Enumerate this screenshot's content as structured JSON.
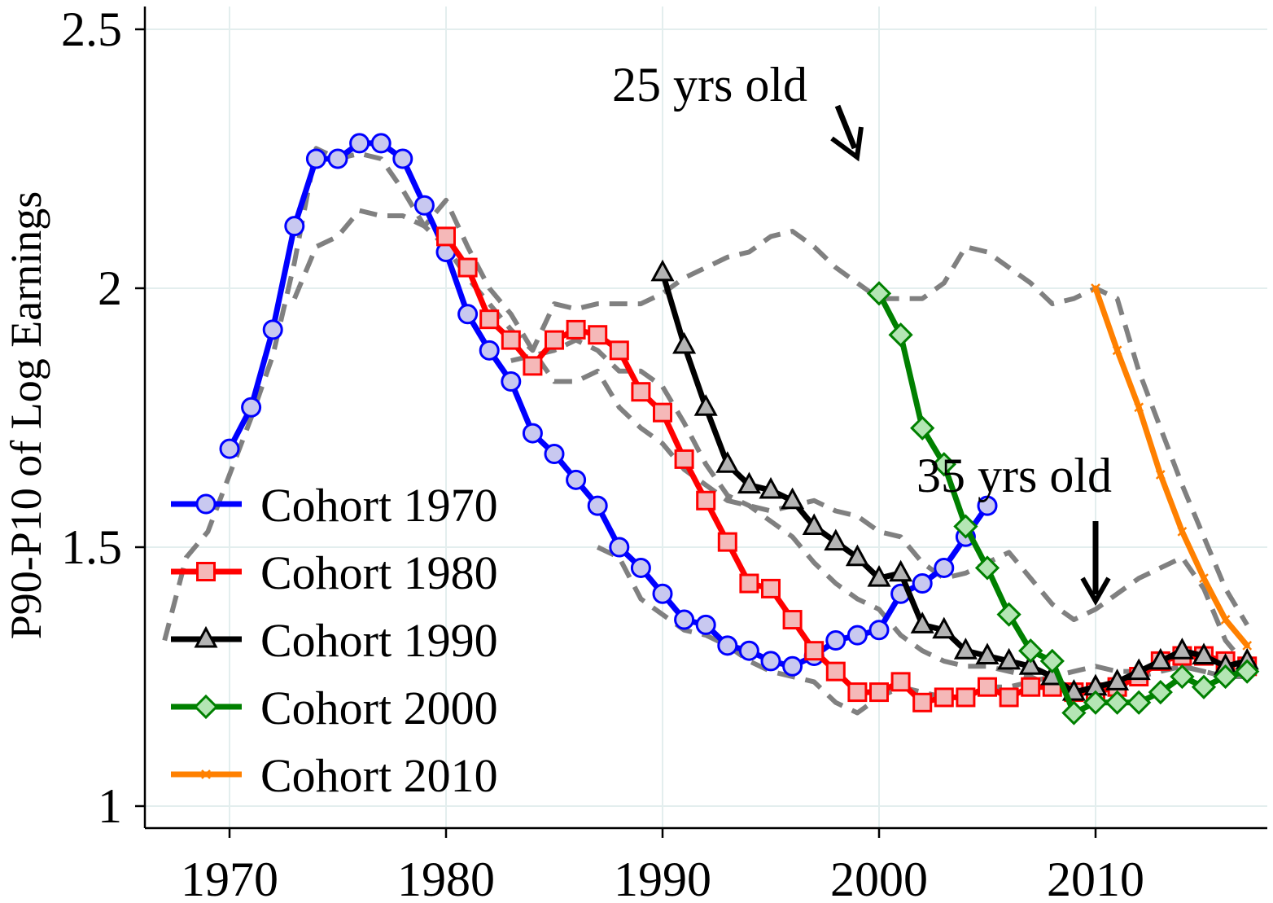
{
  "chart_data": {
    "type": "line",
    "title": "",
    "xlabel": "",
    "ylabel": "P90-P10 of Log Earnings",
    "xlim": [
      1966,
      2018
    ],
    "ylim": [
      1,
      2.55
    ],
    "x_ticks": [
      "1970",
      "1980",
      "1990",
      "2000",
      "2010"
    ],
    "y_ticks": [
      "1",
      "1.5",
      "2",
      "2.5"
    ],
    "grid": true,
    "legend_position": "bottom-left",
    "annotations": [
      {
        "text": "25 yrs old",
        "points_to": [
          1999,
          2.25
        ]
      },
      {
        "text": "35 yrs old",
        "points_to": [
          2010,
          1.39
        ]
      }
    ],
    "series": [
      {
        "name": "Cohort 1970",
        "color": "#0000ff",
        "marker": "circle",
        "marker_fill": "#c8c8f0",
        "x": [
          1970,
          1971,
          1972,
          1973,
          1974,
          1975,
          1976,
          1977,
          1978,
          1979,
          1980,
          1981,
          1982,
          1983,
          1984,
          1985,
          1986,
          1987,
          1988,
          1989,
          1990,
          1991,
          1992,
          1993,
          1994,
          1995,
          1996,
          1997,
          1998,
          1999,
          2000,
          2001,
          2002,
          2003,
          2004,
          2005
        ],
        "values": [
          1.69,
          1.77,
          1.92,
          2.12,
          2.25,
          2.25,
          2.28,
          2.28,
          2.25,
          2.16,
          2.07,
          1.95,
          1.88,
          1.82,
          1.72,
          1.68,
          1.63,
          1.58,
          1.5,
          1.46,
          1.41,
          1.36,
          1.35,
          1.31,
          1.3,
          1.28,
          1.27,
          1.29,
          1.32,
          1.33,
          1.34,
          1.41,
          1.43,
          1.46,
          1.52,
          1.58
        ]
      },
      {
        "name": "Cohort 1980",
        "color": "#ff0000",
        "marker": "square",
        "marker_fill": "#f5b8b8",
        "x": [
          1980,
          1981,
          1982,
          1983,
          1984,
          1985,
          1986,
          1987,
          1988,
          1989,
          1990,
          1991,
          1992,
          1993,
          1994,
          1995,
          1996,
          1997,
          1998,
          1999,
          2000,
          2001,
          2002,
          2003,
          2004,
          2005,
          2006,
          2007,
          2008,
          2009,
          2010,
          2011,
          2012,
          2013,
          2014,
          2015,
          2016,
          2017
        ],
        "values": [
          2.1,
          2.04,
          1.94,
          1.9,
          1.85,
          1.9,
          1.92,
          1.91,
          1.88,
          1.8,
          1.76,
          1.67,
          1.59,
          1.51,
          1.43,
          1.42,
          1.36,
          1.3,
          1.26,
          1.22,
          1.22,
          1.24,
          1.2,
          1.21,
          1.21,
          1.23,
          1.21,
          1.23,
          1.23,
          1.22,
          1.22,
          1.23,
          1.25,
          1.28,
          1.29,
          1.29,
          1.28,
          1.27
        ]
      },
      {
        "name": "Cohort 1990",
        "color": "#000000",
        "marker": "triangle",
        "marker_fill": "#b4b4b4",
        "x": [
          1990,
          1991,
          1992,
          1993,
          1994,
          1995,
          1996,
          1997,
          1998,
          1999,
          2000,
          2001,
          2002,
          2003,
          2004,
          2005,
          2006,
          2007,
          2008,
          2009,
          2010,
          2011,
          2012,
          2013,
          2014,
          2015,
          2016,
          2017
        ],
        "values": [
          2.03,
          1.89,
          1.77,
          1.66,
          1.62,
          1.61,
          1.59,
          1.54,
          1.51,
          1.48,
          1.44,
          1.45,
          1.35,
          1.34,
          1.3,
          1.29,
          1.28,
          1.27,
          1.25,
          1.22,
          1.23,
          1.24,
          1.26,
          1.28,
          1.3,
          1.29,
          1.27,
          1.28
        ]
      },
      {
        "name": "Cohort 2000",
        "color": "#008000",
        "marker": "diamond",
        "marker_fill": "#b4e6b4",
        "x": [
          2000,
          2001,
          2002,
          2003,
          2004,
          2005,
          2006,
          2007,
          2008,
          2009,
          2010,
          2011,
          2012,
          2013,
          2014,
          2015,
          2016,
          2017
        ],
        "values": [
          1.99,
          1.91,
          1.73,
          1.66,
          1.54,
          1.46,
          1.37,
          1.3,
          1.28,
          1.18,
          1.2,
          1.2,
          1.2,
          1.22,
          1.25,
          1.23,
          1.25,
          1.26
        ]
      },
      {
        "name": "Cohort 2010",
        "color": "#ff8000",
        "marker": "x",
        "marker_fill": "#ff8000",
        "x": [
          2010,
          2011,
          2012,
          2013,
          2014,
          2015,
          2016,
          2017
        ],
        "values": [
          2.0,
          1.88,
          1.77,
          1.64,
          1.53,
          1.44,
          1.36,
          1.31
        ]
      },
      {
        "name": "",
        "color": "#808080",
        "dashed": true,
        "x": [
          1967,
          1968,
          1969,
          1970,
          1971,
          1972,
          1973,
          1974,
          1975,
          1976,
          1977,
          1978,
          1979,
          1980,
          1981,
          1982,
          1983,
          1984,
          1985,
          1986,
          1987,
          1988,
          1989,
          1990,
          1991,
          1992,
          1993,
          1994,
          1995,
          1996,
          1997,
          1998,
          1999,
          2000,
          2001,
          2002,
          2003,
          2004,
          2005,
          2006,
          2007,
          2008,
          2009,
          2010,
          2011,
          2012,
          2013,
          2014,
          2015,
          2016,
          2017
        ],
        "values": [
          1.32,
          1.48,
          1.53,
          1.64,
          1.75,
          1.87,
          2.05,
          2.27,
          2.25,
          2.26,
          2.25,
          2.19,
          2.12,
          2.08,
          2.02,
          1.97,
          1.92,
          1.88,
          1.97,
          1.96,
          1.97,
          1.97,
          1.97,
          1.99,
          2.02,
          2.04,
          2.06,
          2.07,
          2.1,
          2.11,
          2.08,
          2.04,
          2.01,
          1.98,
          1.98,
          1.98,
          2.01,
          2.08,
          2.07,
          2.04,
          2.01,
          1.97,
          1.98,
          2.0,
          1.98,
          1.84,
          1.73,
          1.62,
          1.52,
          1.42,
          1.35
        ]
      },
      {
        "name": "",
        "color": "#808080",
        "dashed": true,
        "x": [
          1973,
          1974,
          1975,
          1976,
          1977,
          1978,
          1979,
          1980,
          1981,
          1982,
          1983,
          1984,
          1985,
          1986,
          1987,
          1988,
          1989,
          1990,
          1991,
          1992,
          1993,
          1994,
          1995,
          1996,
          1997,
          1998,
          1999,
          2000,
          2001,
          2002,
          2003,
          2004,
          2005,
          2006,
          2007,
          2008,
          2009,
          2010,
          2011,
          2012,
          2013,
          2014,
          2015,
          2016,
          2017
        ],
        "values": [
          1.98,
          2.08,
          2.1,
          2.15,
          2.14,
          2.14,
          2.12,
          2.17,
          2.08,
          2.0,
          1.95,
          1.88,
          1.82,
          1.82,
          1.84,
          1.77,
          1.73,
          1.7,
          1.65,
          1.62,
          1.59,
          1.58,
          1.57,
          1.58,
          1.59,
          1.57,
          1.56,
          1.53,
          1.52,
          1.47,
          1.44,
          1.45,
          1.47,
          1.49,
          1.44,
          1.39,
          1.36,
          1.38,
          1.41,
          1.44,
          1.46,
          1.48,
          1.42,
          1.32,
          1.27
        ]
      },
      {
        "name": "",
        "color": "#808080",
        "dashed": true,
        "x": [
          1983,
          1984,
          1985,
          1986,
          1987,
          1988,
          1989,
          1990,
          1991,
          1992,
          1993,
          1994,
          1995,
          1996,
          1997,
          1998,
          1999,
          2000,
          2001,
          2002,
          2003,
          2004,
          2005,
          2006,
          2007,
          2008,
          2009,
          2010,
          2011,
          2012,
          2013,
          2014,
          2015,
          2016,
          2017
        ],
        "values": [
          1.86,
          1.87,
          1.88,
          1.9,
          1.88,
          1.84,
          1.84,
          1.81,
          1.74,
          1.66,
          1.6,
          1.58,
          1.55,
          1.52,
          1.47,
          1.43,
          1.4,
          1.38,
          1.33,
          1.3,
          1.28,
          1.27,
          1.27,
          1.26,
          1.25,
          1.23,
          1.22,
          1.23,
          1.24,
          1.25,
          1.26,
          1.27,
          1.26,
          1.25,
          1.25
        ]
      },
      {
        "name": "",
        "color": "#808080",
        "dashed": true,
        "x": [
          1987,
          1988,
          1989,
          1990,
          1991,
          1992,
          1993,
          1994,
          1995,
          1996,
          1997,
          1998,
          1999,
          2000,
          2001,
          2002,
          2003,
          2004,
          2005,
          2006,
          2007,
          2008,
          2009,
          2010,
          2011,
          2012,
          2013,
          2014,
          2015,
          2016,
          2017
        ],
        "values": [
          1.5,
          1.48,
          1.4,
          1.37,
          1.34,
          1.33,
          1.31,
          1.28,
          1.26,
          1.25,
          1.24,
          1.2,
          1.18,
          1.21,
          1.23,
          1.22,
          1.21,
          1.22,
          1.23,
          1.23,
          1.24,
          1.25,
          1.26,
          1.27,
          1.26,
          1.26,
          1.27,
          1.27,
          1.26,
          1.25,
          1.25
        ]
      }
    ]
  }
}
